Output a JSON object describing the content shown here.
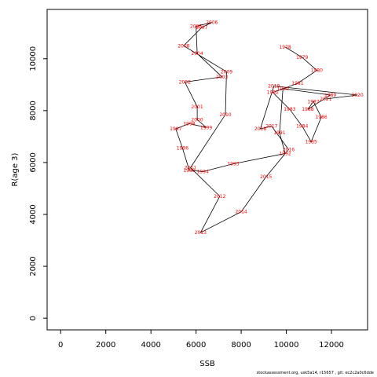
{
  "chart_data": {
    "type": "line",
    "title": "",
    "xlabel": "SSB",
    "ylabel": "R(age 3)",
    "xlim": [
      -600,
      13600
    ],
    "ylim": [
      -450,
      11900
    ],
    "xticks": [
      0,
      2000,
      4000,
      6000,
      8000,
      10000,
      12000
    ],
    "yticks": [
      0,
      2000,
      4000,
      6000,
      8000,
      10000
    ],
    "label_color": "#ff0000",
    "line_color": "#000000",
    "grid": false,
    "series": [
      {
        "points": [
          {
            "year": "1978",
            "x": 9950,
            "y": 10450
          },
          {
            "year": "1979",
            "x": 10700,
            "y": 10050
          },
          {
            "year": "1980",
            "x": 11350,
            "y": 9550
          },
          {
            "year": "1981",
            "x": 10500,
            "y": 9050
          },
          {
            "year": "1982",
            "x": 9400,
            "y": 8700
          },
          {
            "year": "1983",
            "x": 10150,
            "y": 8050
          },
          {
            "year": "1984",
            "x": 10700,
            "y": 7400
          },
          {
            "year": "1985",
            "x": 11100,
            "y": 6800
          },
          {
            "year": "1986",
            "x": 11550,
            "y": 7750
          },
          {
            "year": "1987",
            "x": 11200,
            "y": 8350
          },
          {
            "year": "1988",
            "x": 10950,
            "y": 8050
          },
          {
            "year": "1989",
            "x": 11950,
            "y": 8600
          },
          {
            "year": "1990",
            "x": 9850,
            "y": 8850
          },
          {
            "year": "1991",
            "x": 9700,
            "y": 7150
          },
          {
            "year": "1992",
            "x": 9950,
            "y": 6350
          },
          {
            "year": "1993",
            "x": 7650,
            "y": 5950
          },
          {
            "year": "1994",
            "x": 6300,
            "y": 5650
          },
          {
            "year": "1995",
            "x": 5700,
            "y": 5700
          },
          {
            "year": "1996",
            "x": 5400,
            "y": 6550
          },
          {
            "year": "1997",
            "x": 5100,
            "y": 7300
          },
          {
            "year": "1998",
            "x": 5700,
            "y": 7500
          },
          {
            "year": "1999",
            "x": 6450,
            "y": 7350
          },
          {
            "year": "2000",
            "x": 6050,
            "y": 7650
          },
          {
            "year": "2001",
            "x": 6050,
            "y": 8150
          },
          {
            "year": "2002",
            "x": 5500,
            "y": 9100
          },
          {
            "year": "2003",
            "x": 7150,
            "y": 9300
          },
          {
            "year": "2004",
            "x": 6050,
            "y": 10200
          },
          {
            "year": "2005",
            "x": 6000,
            "y": 11250
          },
          {
            "year": "2006",
            "x": 6700,
            "y": 11400
          },
          {
            "year": "2007",
            "x": 6250,
            "y": 11200
          },
          {
            "year": "2008",
            "x": 5450,
            "y": 10500
          },
          {
            "year": "2009",
            "x": 7350,
            "y": 9500
          },
          {
            "year": "2010",
            "x": 7300,
            "y": 7850
          },
          {
            "year": "2011",
            "x": 5750,
            "y": 5800
          },
          {
            "year": "2012",
            "x": 7050,
            "y": 4700
          },
          {
            "year": "2013",
            "x": 6200,
            "y": 3300
          },
          {
            "year": "2014",
            "x": 8000,
            "y": 4100
          },
          {
            "year": "2015",
            "x": 9100,
            "y": 5450
          },
          {
            "year": "2016",
            "x": 10100,
            "y": 6500
          },
          {
            "year": "2017",
            "x": 9350,
            "y": 7400
          },
          {
            "year": "2018",
            "x": 8850,
            "y": 7300
          },
          {
            "year": "2019",
            "x": 9450,
            "y": 8950
          },
          {
            "year": "2020",
            "x": 13150,
            "y": 8600
          },
          {
            "year": "2021",
            "x": 11750,
            "y": 8450
          }
        ]
      }
    ]
  },
  "footer": "stockassessment.org, usk5a14, r15657 , git: ec2c2a0c6dde"
}
